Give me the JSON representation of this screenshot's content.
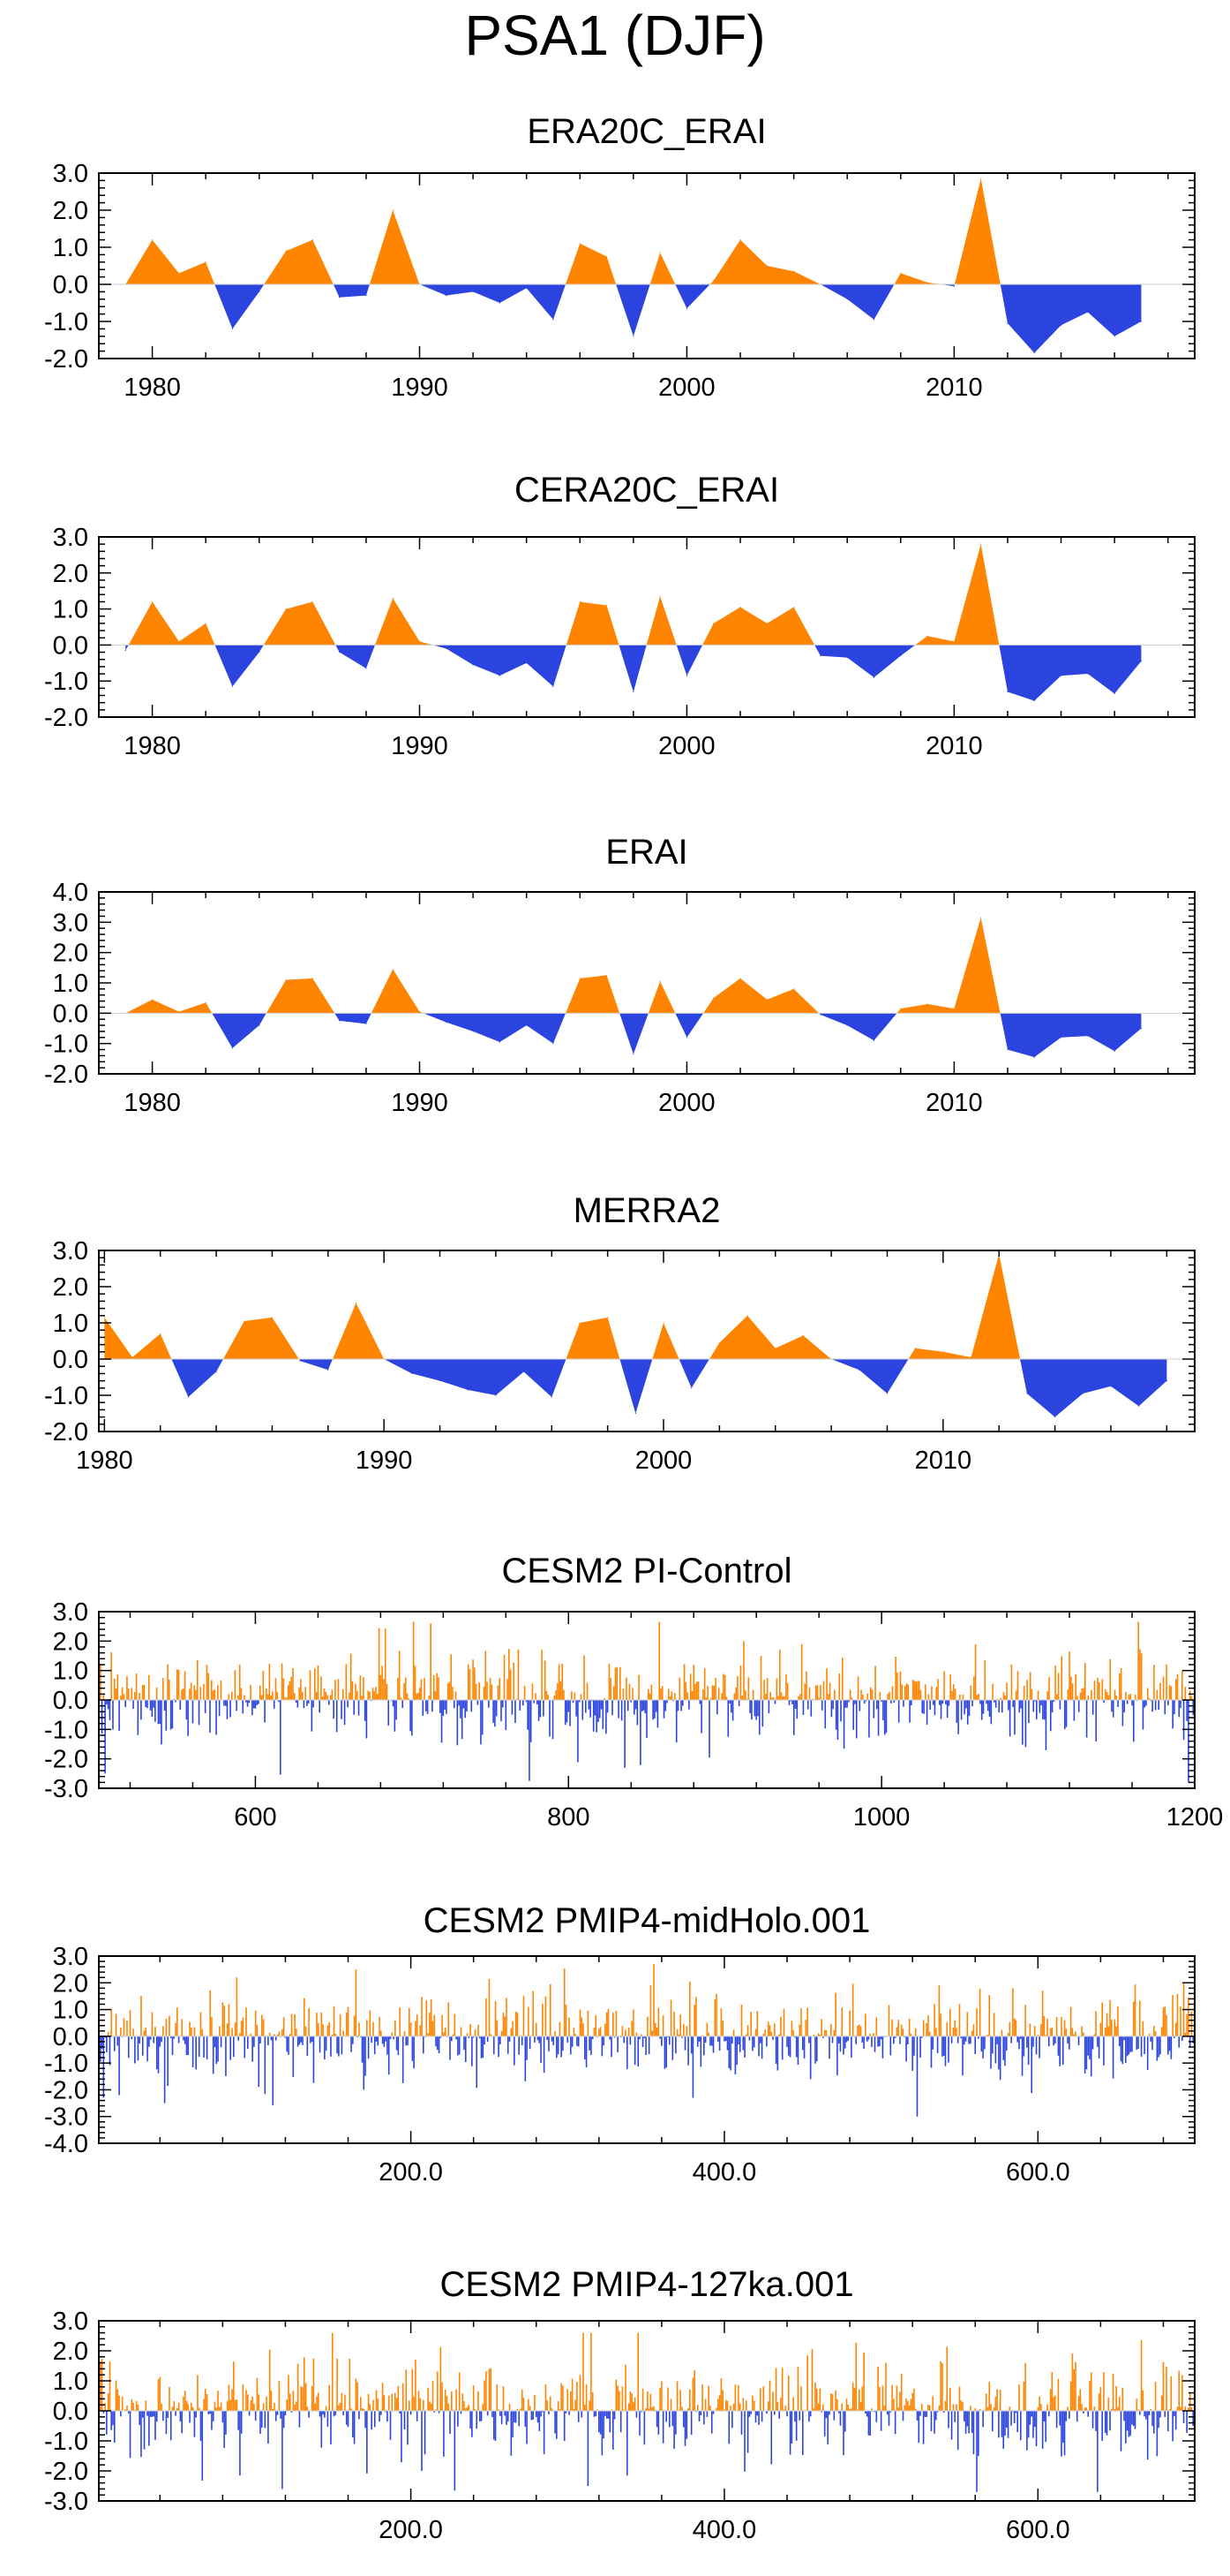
{
  "figure": {
    "title": "PSA1 (DJF)",
    "colors": {
      "positive": "#ff8400",
      "negative": "#2b44e0",
      "axis": "#000000",
      "zero_line": "#cfcfcf"
    }
  },
  "chart_data": [
    {
      "type": "area",
      "title": "ERA20C_ERAI",
      "xlabel": "",
      "ylabel": "",
      "x_start": 1979,
      "x_step": 1,
      "xlim": [
        1978,
        2019
      ],
      "ylim": [
        -2.0,
        3.0
      ],
      "yticks": [
        -2,
        -1,
        0,
        1,
        2,
        3
      ],
      "ytick_labels": [
        "-2.0",
        "-1.0",
        "0.0",
        "1.0",
        "2.0",
        "3.0"
      ],
      "xticks": [
        1980,
        1990,
        2000,
        2010
      ],
      "xtick_labels": [
        "1980",
        "1990",
        "2000",
        "2010"
      ],
      "values": [
        0.0,
        1.2,
        0.3,
        0.6,
        -1.2,
        -0.2,
        0.9,
        1.2,
        -0.35,
        -0.3,
        2.0,
        0.0,
        -0.3,
        -0.2,
        -0.5,
        -0.1,
        -0.95,
        1.1,
        0.75,
        -1.4,
        0.85,
        -0.65,
        0.1,
        1.2,
        0.5,
        0.35,
        0.0,
        -0.4,
        -0.95,
        0.3,
        0.05,
        -0.05,
        2.85,
        -1.05,
        -1.85,
        -1.1,
        -0.75,
        -1.4,
        -1.0
      ]
    },
    {
      "type": "area",
      "title": "CERA20C_ERAI",
      "xlabel": "",
      "ylabel": "",
      "x_start": 1979,
      "x_step": 1,
      "xlim": [
        1978,
        2019
      ],
      "ylim": [
        -2.0,
        3.0
      ],
      "yticks": [
        -2,
        -1,
        0,
        1,
        2,
        3
      ],
      "ytick_labels": [
        "-2.0",
        "-1.0",
        "0.0",
        "1.0",
        "2.0",
        "3.0"
      ],
      "xticks": [
        1980,
        1990,
        2000,
        2010
      ],
      "xtick_labels": [
        "1980",
        "1990",
        "2000",
        "2010"
      ],
      "values": [
        -0.15,
        1.2,
        0.1,
        0.6,
        -1.15,
        -0.2,
        1.0,
        1.2,
        -0.2,
        -0.65,
        1.3,
        0.1,
        -0.1,
        -0.55,
        -0.85,
        -0.5,
        -1.15,
        1.2,
        1.1,
        -1.3,
        1.35,
        -0.85,
        0.6,
        1.05,
        0.6,
        1.05,
        -0.3,
        -0.35,
        -0.9,
        -0.3,
        0.25,
        0.1,
        2.8,
        -1.3,
        -1.55,
        -0.85,
        -0.8,
        -1.35,
        -0.45
      ]
    },
    {
      "type": "area",
      "title": "ERAI",
      "xlabel": "",
      "ylabel": "",
      "x_start": 1979,
      "x_step": 1,
      "xlim": [
        1978,
        2019
      ],
      "ylim": [
        -2.0,
        4.0
      ],
      "yticks": [
        -2,
        -1,
        0,
        1,
        2,
        3,
        4
      ],
      "ytick_labels": [
        "-2.0",
        "-1.0",
        "0.0",
        "1.0",
        "2.0",
        "3.0",
        "4.0"
      ],
      "xticks": [
        1980,
        1990,
        2000,
        2010
      ],
      "xtick_labels": [
        "1980",
        "1990",
        "2000",
        "2010"
      ],
      "values": [
        0.0,
        0.45,
        0.05,
        0.35,
        -1.15,
        -0.4,
        1.1,
        1.15,
        -0.25,
        -0.35,
        1.45,
        0.05,
        -0.3,
        -0.6,
        -0.95,
        -0.4,
        -1.0,
        1.15,
        1.25,
        -1.35,
        1.05,
        -0.8,
        0.5,
        1.15,
        0.45,
        0.8,
        -0.05,
        -0.4,
        -0.9,
        0.15,
        0.3,
        0.15,
        3.15,
        -1.2,
        -1.45,
        -0.8,
        -0.75,
        -1.25,
        -0.5
      ]
    },
    {
      "type": "area",
      "title": "MERRA2",
      "xlabel": "",
      "ylabel": "",
      "x_start": 1980,
      "x_step": 1,
      "xlim": [
        1979.8,
        2019
      ],
      "ylim": [
        -2.0,
        3.0
      ],
      "yticks": [
        -2,
        -1,
        0,
        1,
        2,
        3
      ],
      "ytick_labels": [
        "-2.0",
        "-1.0",
        "0.0",
        "1.0",
        "2.0",
        "3.0"
      ],
      "xticks": [
        1980,
        1990,
        2000,
        2010
      ],
      "xtick_labels": [
        "1980",
        "1990",
        "2000",
        "2010"
      ],
      "values": [
        1.15,
        0.05,
        0.7,
        -1.05,
        -0.35,
        1.05,
        1.15,
        -0.05,
        -0.3,
        1.55,
        0.0,
        -0.4,
        -0.6,
        -0.85,
        -1.0,
        -0.35,
        -1.05,
        1.0,
        1.15,
        -1.5,
        1.0,
        -0.8,
        0.45,
        1.2,
        0.3,
        0.65,
        0.0,
        -0.3,
        -0.95,
        0.3,
        0.2,
        0.05,
        2.9,
        -0.95,
        -1.6,
        -0.95,
        -0.75,
        -1.3,
        -0.6
      ]
    },
    {
      "type": "bar",
      "title": "CESM2 PI-Control",
      "xlabel": "",
      "ylabel": "",
      "n_points": 700,
      "x_start": 500,
      "x_step": 1,
      "xlim": [
        500,
        1200
      ],
      "ylim": [
        -3.0,
        3.0
      ],
      "yticks": [
        -3,
        -2,
        -1,
        0,
        1,
        2,
        3
      ],
      "ytick_labels": [
        "-3.0",
        "-2.0",
        "-1.0",
        "0.0",
        "1.0",
        "2.0",
        "3.0"
      ],
      "xticks": [
        600,
        800,
        1000,
        1200
      ],
      "xtick_labels": [
        "600",
        "800",
        "1000",
        "1200"
      ],
      "peak_values": [
        {
          "x": 712,
          "value": 2.6
        },
        {
          "x": 1164,
          "value": 2.65
        },
        {
          "x": 504,
          "value": -2.5
        },
        {
          "x": 775,
          "value": -2.75
        },
        {
          "x": 1196,
          "value": -2.8
        }
      ],
      "value_range": [
        -2.8,
        2.65
      ],
      "seed": 17
    },
    {
      "type": "bar",
      "title": "CESM2 PMIP4-midHolo.001",
      "xlabel": "",
      "ylabel": "",
      "n_points": 700,
      "x_start": 1,
      "x_step": 1,
      "xlim": [
        1,
        700
      ],
      "ylim": [
        -4.0,
        3.0
      ],
      "yticks": [
        -4,
        -3,
        -2,
        -1,
        0,
        1,
        2,
        3
      ],
      "ytick_labels": [
        "-4.0",
        "-3.0",
        "-2.0",
        "-1.0",
        "0.0",
        "1.0",
        "2.0",
        "3.0"
      ],
      "xticks": [
        200,
        400,
        600
      ],
      "xtick_labels": [
        "200.0",
        "400.0",
        "600.0"
      ],
      "peak_values": [
        {
          "x": 355,
          "value": 2.7
        },
        {
          "x": 165,
          "value": 2.5
        },
        {
          "x": 14,
          "value": -2.2
        },
        {
          "x": 380,
          "value": -2.3
        },
        {
          "x": 523,
          "value": -3.0
        }
      ],
      "value_range": [
        -3.0,
        2.7
      ],
      "seed": 29
    },
    {
      "type": "bar",
      "title": "CESM2 PMIP4-127ka.001",
      "xlabel": "",
      "ylabel": "",
      "n_points": 700,
      "x_start": 1,
      "x_step": 1,
      "xlim": [
        1,
        700
      ],
      "ylim": [
        -3.0,
        3.0
      ],
      "yticks": [
        -3,
        -2,
        -1,
        0,
        1,
        2,
        3
      ],
      "ytick_labels": [
        "-3.0",
        "-2.0",
        "-1.0",
        "0.0",
        "1.0",
        "2.0",
        "3.0"
      ],
      "xticks": [
        200,
        400,
        600
      ],
      "xtick_labels": [
        "200.0",
        "400.0",
        "600.0"
      ],
      "peak_values": [
        {
          "x": 150,
          "value": 2.6
        },
        {
          "x": 118,
          "value": -2.6
        },
        {
          "x": 313,
          "value": -2.5
        },
        {
          "x": 638,
          "value": -2.7
        }
      ],
      "value_range": [
        -2.7,
        2.6
      ],
      "seed": 43
    }
  ]
}
